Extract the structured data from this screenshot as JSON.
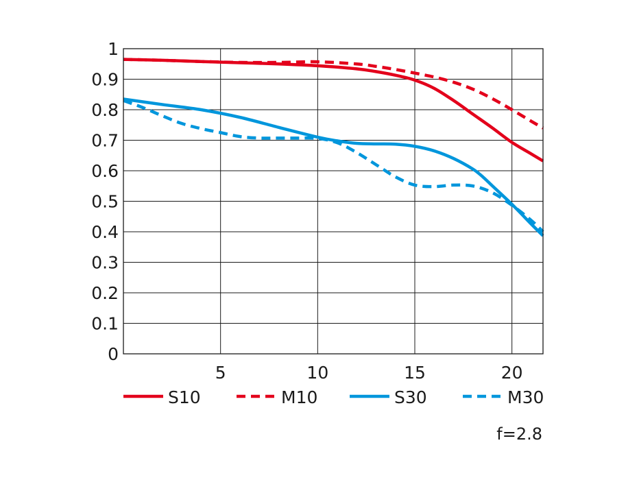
{
  "chart_data": {
    "type": "line",
    "title": "",
    "xlabel": "",
    "ylabel": "",
    "xlim": [
      0,
      21.6
    ],
    "ylim": [
      0,
      1
    ],
    "x_ticks": [
      5,
      10,
      15,
      20
    ],
    "x_tick_labels": [
      "5",
      "10",
      "15",
      "20"
    ],
    "y_ticks": [
      0,
      0.1,
      0.2,
      0.3,
      0.4,
      0.5,
      0.6,
      0.7,
      0.8,
      0.9,
      1
    ],
    "y_tick_labels": [
      "0",
      "0.1",
      "0.2",
      "0.3",
      "0.4",
      "0.5",
      "0.6",
      "0.7",
      "0.8",
      "0.9",
      "1"
    ],
    "grid": true,
    "legend_position": "bottom",
    "annotation": "f=2.8",
    "series": [
      {
        "name": "S10",
        "color": "#e3001b",
        "dashed": false,
        "x": [
          0,
          2,
          4,
          6,
          8,
          10,
          12,
          13,
          14,
          15,
          16,
          17,
          18,
          19,
          20,
          21,
          21.6
        ],
        "y": [
          0.965,
          0.962,
          0.958,
          0.954,
          0.95,
          0.944,
          0.934,
          0.925,
          0.913,
          0.897,
          0.87,
          0.83,
          0.785,
          0.74,
          0.693,
          0.655,
          0.632
        ]
      },
      {
        "name": "M10",
        "color": "#e3001b",
        "dashed": true,
        "x": [
          0,
          2,
          4,
          6,
          8,
          10,
          12,
          13,
          14,
          15,
          16,
          17,
          18,
          19,
          20,
          21,
          21.6
        ],
        "y": [
          0.965,
          0.962,
          0.958,
          0.955,
          0.955,
          0.957,
          0.95,
          0.942,
          0.932,
          0.92,
          0.907,
          0.89,
          0.867,
          0.836,
          0.8,
          0.762,
          0.74
        ]
      },
      {
        "name": "S30",
        "color": "#0096dc",
        "dashed": false,
        "x": [
          0,
          2,
          4,
          6,
          8,
          10,
          11,
          12,
          13,
          14,
          15,
          16,
          17,
          18,
          18.5,
          19,
          20,
          21,
          21.6
        ],
        "y": [
          0.835,
          0.817,
          0.8,
          0.775,
          0.742,
          0.71,
          0.698,
          0.69,
          0.688,
          0.687,
          0.68,
          0.665,
          0.64,
          0.605,
          0.58,
          0.55,
          0.49,
          0.425,
          0.387
        ]
      },
      {
        "name": "M30",
        "color": "#0096dc",
        "dashed": true,
        "x": [
          0,
          1,
          2,
          3,
          4,
          5,
          6,
          7,
          8,
          9,
          10,
          11,
          12,
          13,
          14,
          15,
          16,
          17,
          18,
          19,
          20,
          21,
          21.6
        ],
        "y": [
          0.83,
          0.807,
          0.78,
          0.755,
          0.738,
          0.725,
          0.712,
          0.707,
          0.707,
          0.707,
          0.706,
          0.692,
          0.66,
          0.62,
          0.58,
          0.553,
          0.548,
          0.553,
          0.55,
          0.528,
          0.487,
          0.437,
          0.4
        ]
      }
    ]
  }
}
